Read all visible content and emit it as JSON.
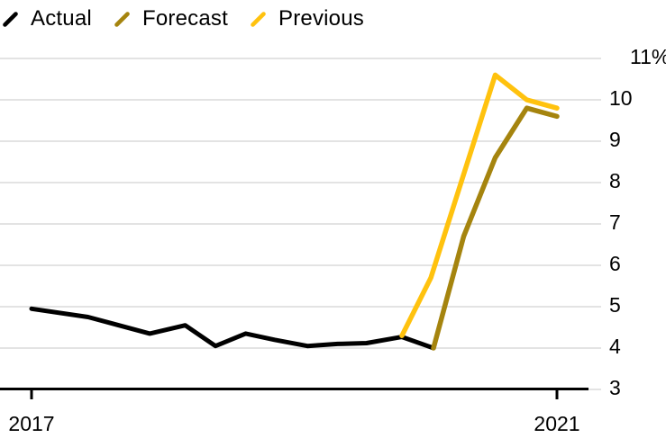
{
  "chart_data": {
    "type": "line",
    "title": "",
    "unit": "%",
    "grid": "horizontal",
    "legend_position": "top-left",
    "colors": {
      "actual": "#000000",
      "forecast": "#A5840E",
      "previous": "#FFC20E",
      "gridline": "#E3E3E3",
      "axis": "#000000"
    },
    "x_axis": {
      "range": [
        2016.76,
        2021.34
      ],
      "ticks": [
        {
          "label": "2017",
          "year": 2017
        },
        {
          "label": "2021",
          "year": 2021
        }
      ]
    },
    "y_axis": {
      "range": [
        3,
        11
      ],
      "ticks": [
        {
          "label": "11%",
          "value": 11
        },
        {
          "label": "10",
          "value": 10
        },
        {
          "label": "9",
          "value": 9
        },
        {
          "label": "8",
          "value": 8
        },
        {
          "label": "7",
          "value": 7
        },
        {
          "label": "6",
          "value": 6
        },
        {
          "label": "5",
          "value": 5
        },
        {
          "label": "4",
          "value": 4
        },
        {
          "label": "3",
          "value": 3
        }
      ]
    },
    "series": [
      {
        "name": "Actual",
        "color": "#000000",
        "points": [
          [
            2017.0,
            4.95
          ],
          [
            2017.43,
            4.75
          ],
          [
            2017.9,
            4.35
          ],
          [
            2018.17,
            4.55
          ],
          [
            2018.4,
            4.05
          ],
          [
            2018.63,
            4.35
          ],
          [
            2018.85,
            4.2
          ],
          [
            2019.1,
            4.05
          ],
          [
            2019.33,
            4.1
          ],
          [
            2019.55,
            4.12
          ],
          [
            2019.82,
            4.27
          ],
          [
            2020.06,
            4.0
          ]
        ]
      },
      {
        "name": "Forecast",
        "color": "#A5840E",
        "points": [
          [
            2020.06,
            4.0
          ],
          [
            2020.29,
            6.7
          ],
          [
            2020.53,
            8.6
          ],
          [
            2020.77,
            9.8
          ],
          [
            2021.0,
            9.6
          ]
        ]
      },
      {
        "name": "Previous",
        "color": "#FFC20E",
        "points": [
          [
            2019.82,
            4.3
          ],
          [
            2020.04,
            5.7
          ],
          [
            2020.29,
            8.2
          ],
          [
            2020.53,
            10.6
          ],
          [
            2020.77,
            10.0
          ],
          [
            2021.0,
            9.8
          ]
        ]
      }
    ]
  }
}
